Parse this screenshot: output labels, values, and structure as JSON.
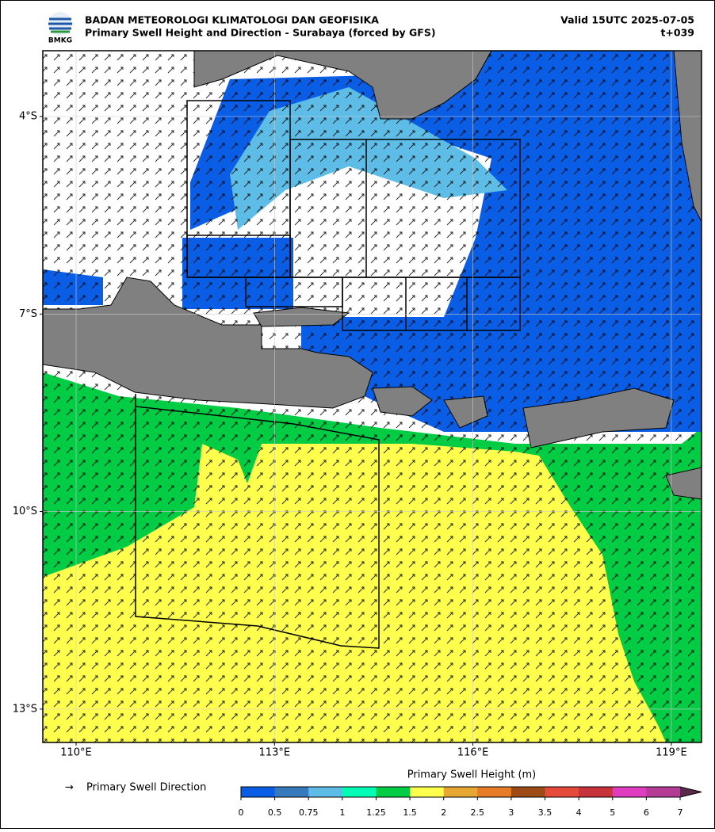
{
  "header": {
    "logo_text": "BMKG",
    "org": "BADAN METEOROLOGI KLIMATOLOGI DAN GEOFISIKA",
    "title": "Primary Swell Height and Direction - Surabaya (forced by GFS)",
    "valid": "Valid 15UTC 2025-07-05",
    "step": "t+039"
  },
  "map": {
    "lat_labels": [
      "4°S",
      "7°S",
      "10°S",
      "13°S"
    ],
    "lon_labels": [
      "110°E",
      "113°E",
      "116°E",
      "119°E"
    ]
  },
  "legend": {
    "arrow_symbol": "→",
    "arrow_label": "Primary Swell Direction",
    "colorbar_title": "Primary Swell Height (m)",
    "ticks": [
      "0",
      "0.5",
      "0.75",
      "1",
      "1.25",
      "1.5",
      "2",
      "2.5",
      "3",
      "3.5",
      "4",
      "5",
      "6",
      "7"
    ],
    "colors": [
      "#0a5ee6",
      "#3779bd",
      "#5ebde6",
      "#00ffb4",
      "#00cc44",
      "#ffff4d",
      "#e6a832",
      "#e67c28",
      "#9c4a16",
      "#e64a3a",
      "#c8323c",
      "#e03cc0",
      "#b43c96"
    ],
    "extend_color": "#5a2a4a"
  }
}
